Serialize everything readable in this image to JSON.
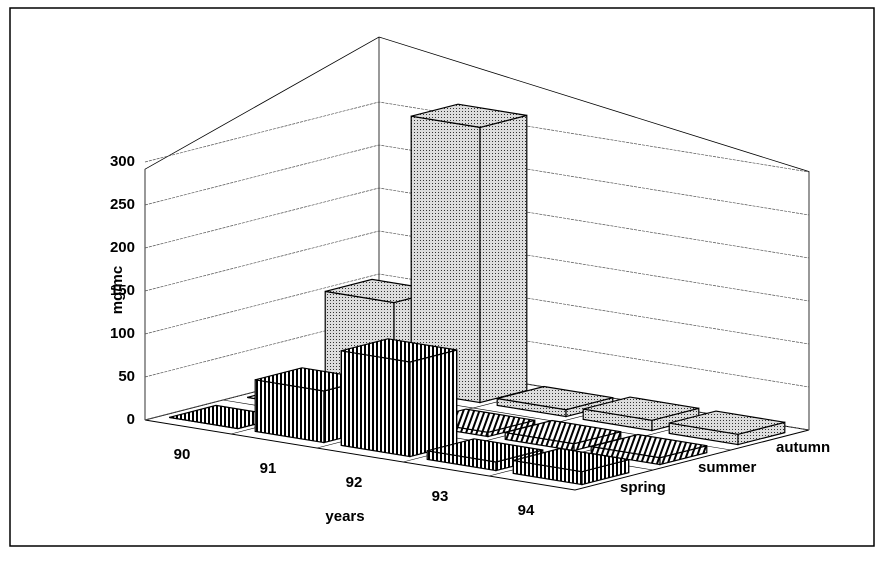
{
  "chart_data": {
    "type": "bar3d",
    "y_label": "mg/mc",
    "x_label": "years",
    "categories": [
      "90",
      "91",
      "92",
      "93",
      "94"
    ],
    "series": [
      {
        "name": "spring",
        "color": "#000000",
        "values": [
          0,
          60,
          110,
          10,
          15
        ]
      },
      {
        "name": "summer",
        "color": "#000000",
        "values": [
          0,
          0,
          5,
          8,
          8
        ]
      },
      {
        "name": "autumn",
        "color": "#000000",
        "values": [
          100,
          320,
          8,
          12,
          12
        ]
      }
    ],
    "ylim": [
      0,
      300
    ],
    "yticks": [
      0,
      50,
      100,
      150,
      200,
      250,
      300
    ],
    "grid": true
  }
}
